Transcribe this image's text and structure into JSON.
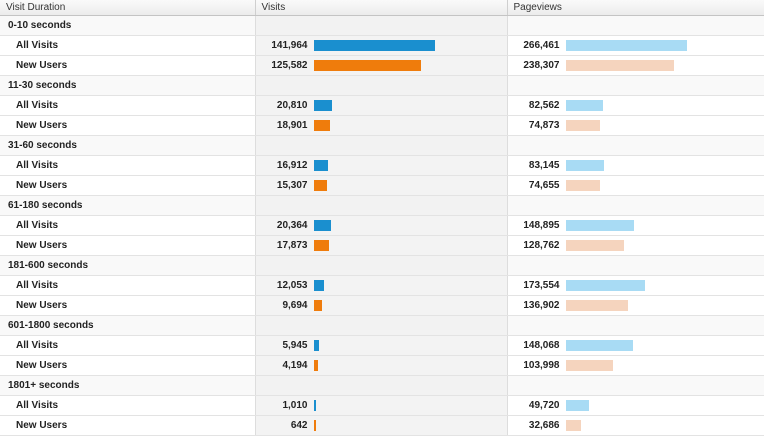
{
  "header": {
    "col_duration": "Visit Duration",
    "col_visits": "Visits",
    "col_pageviews": "Pageviews"
  },
  "colors": {
    "visits_all": "#1a8fcf",
    "visits_new": "#ef7c0c",
    "pageviews_all": "#a8dbf4",
    "pageviews_new": "#f5d4be"
  },
  "scale": {
    "visits_max": 141964,
    "pageviews_max": 266461
  },
  "groups": [
    {
      "label": "0-10 seconds",
      "rows": [
        {
          "label": "All Visits",
          "visits": "141,964",
          "pageviews": "266,461"
        },
        {
          "label": "New Users",
          "visits": "125,582",
          "pageviews": "238,307"
        }
      ]
    },
    {
      "label": "11-30 seconds",
      "rows": [
        {
          "label": "All Visits",
          "visits": "20,810",
          "pageviews": "82,562"
        },
        {
          "label": "New Users",
          "visits": "18,901",
          "pageviews": "74,873"
        }
      ]
    },
    {
      "label": "31-60 seconds",
      "rows": [
        {
          "label": "All Visits",
          "visits": "16,912",
          "pageviews": "83,145"
        },
        {
          "label": "New Users",
          "visits": "15,307",
          "pageviews": "74,655"
        }
      ]
    },
    {
      "label": "61-180 seconds",
      "rows": [
        {
          "label": "All Visits",
          "visits": "20,364",
          "pageviews": "148,895"
        },
        {
          "label": "New Users",
          "visits": "17,873",
          "pageviews": "128,762"
        }
      ]
    },
    {
      "label": "181-600 seconds",
      "rows": [
        {
          "label": "All Visits",
          "visits": "12,053",
          "pageviews": "173,554"
        },
        {
          "label": "New Users",
          "visits": "9,694",
          "pageviews": "136,902"
        }
      ]
    },
    {
      "label": "601-1800 seconds",
      "rows": [
        {
          "label": "All Visits",
          "visits": "5,945",
          "pageviews": "148,068"
        },
        {
          "label": "New Users",
          "visits": "4,194",
          "pageviews": "103,998"
        }
      ]
    },
    {
      "label": "1801+ seconds",
      "rows": [
        {
          "label": "All Visits",
          "visits": "1,010",
          "pageviews": "49,720"
        },
        {
          "label": "New Users",
          "visits": "642",
          "pageviews": "32,686"
        }
      ]
    }
  ]
}
